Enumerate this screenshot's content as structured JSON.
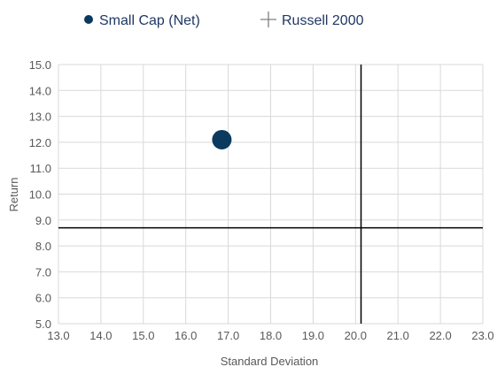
{
  "chart_data": {
    "type": "scatter",
    "title": "",
    "xlabel": "Standard Deviation",
    "ylabel": "Return",
    "xlim": [
      13.0,
      23.0
    ],
    "ylim": [
      5.0,
      15.0
    ],
    "x_ticks": [
      "13.0",
      "14.0",
      "15.0",
      "16.0",
      "17.0",
      "18.0",
      "19.0",
      "20.0",
      "21.0",
      "22.0",
      "23.0"
    ],
    "y_ticks": [
      "5.0",
      "6.0",
      "7.0",
      "8.0",
      "9.0",
      "10.0",
      "11.0",
      "12.0",
      "13.0",
      "14.0",
      "15.0"
    ],
    "grid": true,
    "legend_position": "top",
    "series": [
      {
        "name": "Small Cap (Net)",
        "marker": "circle",
        "color": "#0b3a5e",
        "points": [
          {
            "x": 16.85,
            "y": 12.1
          }
        ]
      },
      {
        "name": "Russell 2000",
        "marker": "crosshair",
        "color": "#000000",
        "points": [
          {
            "x": 20.13,
            "y": 8.7
          }
        ]
      }
    ]
  }
}
